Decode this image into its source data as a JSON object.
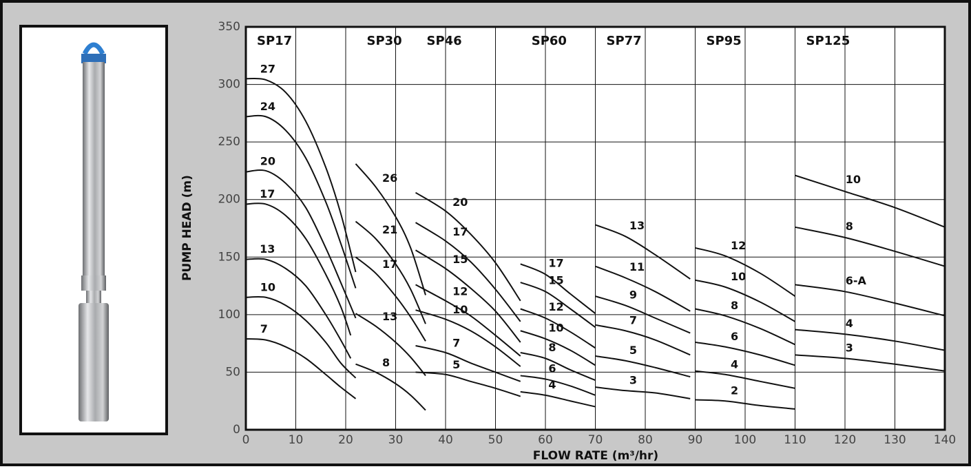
{
  "chart_data": {
    "type": "line",
    "x_label": "FLOW RATE (m³/hr)",
    "y_label": "PUMP HEAD (m)",
    "xlim": [
      0,
      140
    ],
    "ylim": [
      0,
      350
    ],
    "xticks": [
      0,
      10,
      20,
      30,
      40,
      50,
      60,
      70,
      80,
      90,
      100,
      110,
      120,
      130,
      140
    ],
    "yticks": [
      0,
      50,
      100,
      150,
      200,
      250,
      300,
      350
    ],
    "grid": true,
    "color": "#111111",
    "groups": [
      {
        "name": "SP17",
        "series": [
          {
            "name": "27",
            "x": [
              0,
              4,
              8,
              12,
              16,
              19,
              22
            ],
            "values": [
              305,
              304,
              293,
              268,
              228,
              188,
              137
            ]
          },
          {
            "name": "24",
            "x": [
              0,
              4,
              8,
              12,
              16,
              19,
              22
            ],
            "values": [
              272,
              272,
              260,
              236,
              198,
              162,
              123
            ]
          },
          {
            "name": "20",
            "x": [
              0,
              4,
              8,
              12,
              16,
              19,
              22
            ],
            "values": [
              224,
              225,
              214,
              193,
              158,
              128,
              97
            ]
          },
          {
            "name": "17",
            "x": [
              0,
              4,
              8,
              12,
              16,
              19,
              21
            ],
            "values": [
              196,
              196,
              186,
              166,
              135,
              107,
              82
            ]
          },
          {
            "name": "13",
            "x": [
              0,
              4,
              8,
              12,
              16,
              19,
              21
            ],
            "values": [
              148,
              148,
              140,
              125,
              100,
              78,
              62
            ]
          },
          {
            "name": "10",
            "x": [
              0,
              4,
              8,
              12,
              16,
              19,
              22
            ],
            "values": [
              115,
              115,
              108,
              95,
              76,
              58,
              45
            ]
          },
          {
            "name": "7",
            "x": [
              0,
              4,
              8,
              12,
              16,
              19,
              22
            ],
            "values": [
              79,
              78,
              72,
              62,
              48,
              37,
              27
            ]
          }
        ]
      },
      {
        "name": "SP30",
        "series": [
          {
            "name": "26",
            "x": [
              22,
              26,
              30,
              33,
              36
            ],
            "values": [
              231,
              211,
              185,
              158,
              117
            ]
          },
          {
            "name": "21",
            "x": [
              22,
              26,
              30,
              33,
              36
            ],
            "values": [
              181,
              166,
              144,
              122,
              92
            ]
          },
          {
            "name": "17",
            "x": [
              22,
              26,
              30,
              33,
              36
            ],
            "values": [
              150,
              136,
              116,
              98,
              77
            ]
          },
          {
            "name": "13",
            "x": [
              22,
              26,
              30,
              33,
              36
            ],
            "values": [
              101,
              90,
              76,
              63,
              47
            ]
          },
          {
            "name": "8",
            "x": [
              22,
              26,
              30,
              33,
              36
            ],
            "values": [
              57,
              50,
              40,
              30,
              17
            ]
          }
        ]
      },
      {
        "name": "SP46",
        "series": [
          {
            "name": "20",
            "x": [
              34,
              40,
              45,
              50,
              55
            ],
            "values": [
              206,
              190,
              170,
              145,
              112
            ]
          },
          {
            "name": "17",
            "x": [
              34,
              40,
              45,
              50,
              55
            ],
            "values": [
              180,
              164,
              146,
              122,
              94
            ]
          },
          {
            "name": "15",
            "x": [
              34,
              40,
              45,
              50,
              55
            ],
            "values": [
              156,
              140,
              123,
              103,
              76
            ]
          },
          {
            "name": "12",
            "x": [
              34,
              40,
              45,
              50,
              55
            ],
            "values": [
              126,
              112,
              99,
              82,
              64
            ]
          },
          {
            "name": "10",
            "x": [
              34,
              40,
              45,
              50,
              55
            ],
            "values": [
              104,
              96,
              86,
              72,
              55
            ]
          },
          {
            "name": "7",
            "x": [
              34,
              40,
              45,
              50,
              55
            ],
            "values": [
              73,
              67,
              58,
              50,
              42
            ]
          },
          {
            "name": "5",
            "x": [
              34,
              40,
              45,
              50,
              55
            ],
            "values": [
              50,
              48,
              42,
              36,
              29
            ]
          }
        ]
      },
      {
        "name": "SP60",
        "series": [
          {
            "name": "17",
            "x": [
              55,
              60,
              65,
              70
            ],
            "values": [
              144,
              135,
              118,
              101
            ]
          },
          {
            "name": "15",
            "x": [
              55,
              60,
              65,
              70
            ],
            "values": [
              128,
              120,
              105,
              89
            ]
          },
          {
            "name": "12",
            "x": [
              55,
              60,
              65,
              70
            ],
            "values": [
              105,
              97,
              85,
              71
            ]
          },
          {
            "name": "10",
            "x": [
              55,
              60,
              65,
              70
            ],
            "values": [
              86,
              79,
              69,
              56
            ]
          },
          {
            "name": "8",
            "x": [
              55,
              60,
              65,
              70
            ],
            "values": [
              67,
              62,
              52,
              43
            ]
          },
          {
            "name": "6",
            "x": [
              55,
              60,
              65,
              70
            ],
            "values": [
              47,
              44,
              38,
              30
            ]
          },
          {
            "name": "4",
            "x": [
              55,
              60,
              65,
              70
            ],
            "values": [
              33,
              30,
              25,
              20
            ]
          }
        ]
      },
      {
        "name": "SP77",
        "series": [
          {
            "name": "13",
            "x": [
              70,
              76,
              82,
              89
            ],
            "values": [
              178,
              168,
              152,
              131
            ]
          },
          {
            "name": "11",
            "x": [
              70,
              76,
              82,
              89
            ],
            "values": [
              142,
              132,
              120,
              103
            ]
          },
          {
            "name": "9",
            "x": [
              70,
              76,
              82,
              89
            ],
            "values": [
              116,
              108,
              97,
              84
            ]
          },
          {
            "name": "7",
            "x": [
              70,
              76,
              82,
              89
            ],
            "values": [
              91,
              86,
              78,
              65
            ]
          },
          {
            "name": "5",
            "x": [
              70,
              76,
              82,
              89
            ],
            "values": [
              64,
              60,
              54,
              46
            ]
          },
          {
            "name": "3",
            "x": [
              70,
              76,
              82,
              89
            ],
            "values": [
              37,
              34,
              32,
              27
            ]
          }
        ]
      },
      {
        "name": "SP95",
        "series": [
          {
            "name": "12",
            "x": [
              90,
              96,
              103,
              110
            ],
            "values": [
              158,
              151,
              136,
              116
            ]
          },
          {
            "name": "10",
            "x": [
              90,
              96,
              103,
              110
            ],
            "values": [
              130,
              124,
              111,
              94
            ]
          },
          {
            "name": "8",
            "x": [
              90,
              96,
              103,
              110
            ],
            "values": [
              105,
              99,
              88,
              74
            ]
          },
          {
            "name": "6",
            "x": [
              90,
              96,
              103,
              110
            ],
            "values": [
              76,
              72,
              65,
              56
            ]
          },
          {
            "name": "4",
            "x": [
              90,
              96,
              103,
              110
            ],
            "values": [
              51,
              48,
              42,
              36
            ]
          },
          {
            "name": "2",
            "x": [
              90,
              96,
              103,
              110
            ],
            "values": [
              26,
              25,
              21,
              18
            ]
          }
        ]
      },
      {
        "name": "SP125",
        "series": [
          {
            "name": "10",
            "x": [
              110,
              120,
              130,
              140
            ],
            "values": [
              221,
              207,
              193,
              176
            ]
          },
          {
            "name": "8",
            "x": [
              110,
              120,
              130,
              140
            ],
            "values": [
              176,
              167,
              155,
              142
            ]
          },
          {
            "name": "6-A",
            "x": [
              110,
              120,
              130,
              140
            ],
            "values": [
              126,
              120,
              110,
              99
            ]
          },
          {
            "name": "4",
            "x": [
              110,
              120,
              130,
              140
            ],
            "values": [
              87,
              83,
              77,
              69
            ]
          },
          {
            "name": "3",
            "x": [
              110,
              120,
              130,
              140
            ],
            "values": [
              65,
              62,
              57,
              51
            ]
          }
        ]
      }
    ]
  }
}
